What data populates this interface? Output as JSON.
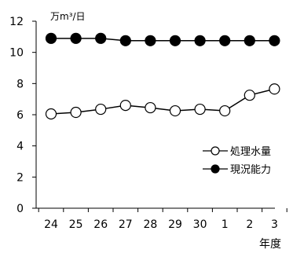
{
  "chart_data": {
    "type": "line",
    "unit_label": "万m³/日",
    "x_axis_label": "年度",
    "categories": [
      "24",
      "25",
      "26",
      "27",
      "28",
      "29",
      "30",
      "1",
      "2",
      "3"
    ],
    "y_ticks": [
      "0",
      "2",
      "4",
      "6",
      "8",
      "10",
      "12"
    ],
    "ylim": [
      0,
      12
    ],
    "grid": false,
    "legend_position": "right",
    "series": [
      {
        "name": "処理水量",
        "marker": "open-circle",
        "color": "#000000",
        "values": [
          6.05,
          6.15,
          6.35,
          6.6,
          6.45,
          6.25,
          6.35,
          6.25,
          7.25,
          7.65
        ]
      },
      {
        "name": "現況能力",
        "marker": "filled-circle",
        "color": "#000000",
        "values": [
          10.9,
          10.9,
          10.9,
          10.75,
          10.75,
          10.75,
          10.75,
          10.75,
          10.75,
          10.75
        ]
      }
    ]
  }
}
